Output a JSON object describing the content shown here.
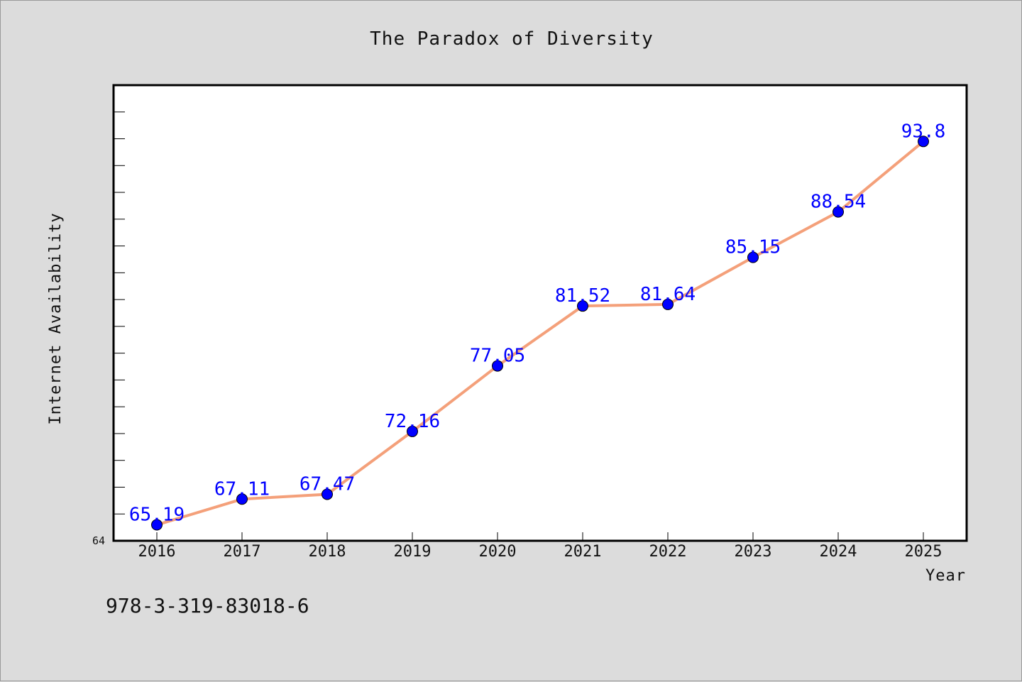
{
  "chart_data": {
    "type": "line",
    "title": "The Paradox of Diversity",
    "xlabel": "Year",
    "ylabel": "Internet Availability",
    "categories": [
      "2016",
      "2017",
      "2018",
      "2019",
      "2020",
      "2021",
      "2022",
      "2023",
      "2024",
      "2025"
    ],
    "series": [
      {
        "values": [
          65.19,
          67.11,
          67.47,
          72.16,
          77.05,
          81.52,
          81.64,
          85.15,
          88.54,
          93.8
        ],
        "data_labels": [
          "65.19",
          "67.11",
          "67.47",
          "72.16",
          "77.05",
          "81.52",
          "81.64",
          "85.15",
          "88.54",
          "93.8"
        ],
        "line_color": "#f4a07a",
        "marker_color": "#0000ff"
      }
    ],
    "ylim": [
      64,
      98
    ],
    "y_tick_labels": [
      "64"
    ],
    "grid": false,
    "legend": "none"
  },
  "footer_text": "978-3-319-83018-6",
  "colors": {
    "background": "#dcdcdc",
    "plot_background": "#ffffff",
    "line": "#f4a07a",
    "marker": "#0000ff",
    "data_label": "#0000ff"
  }
}
